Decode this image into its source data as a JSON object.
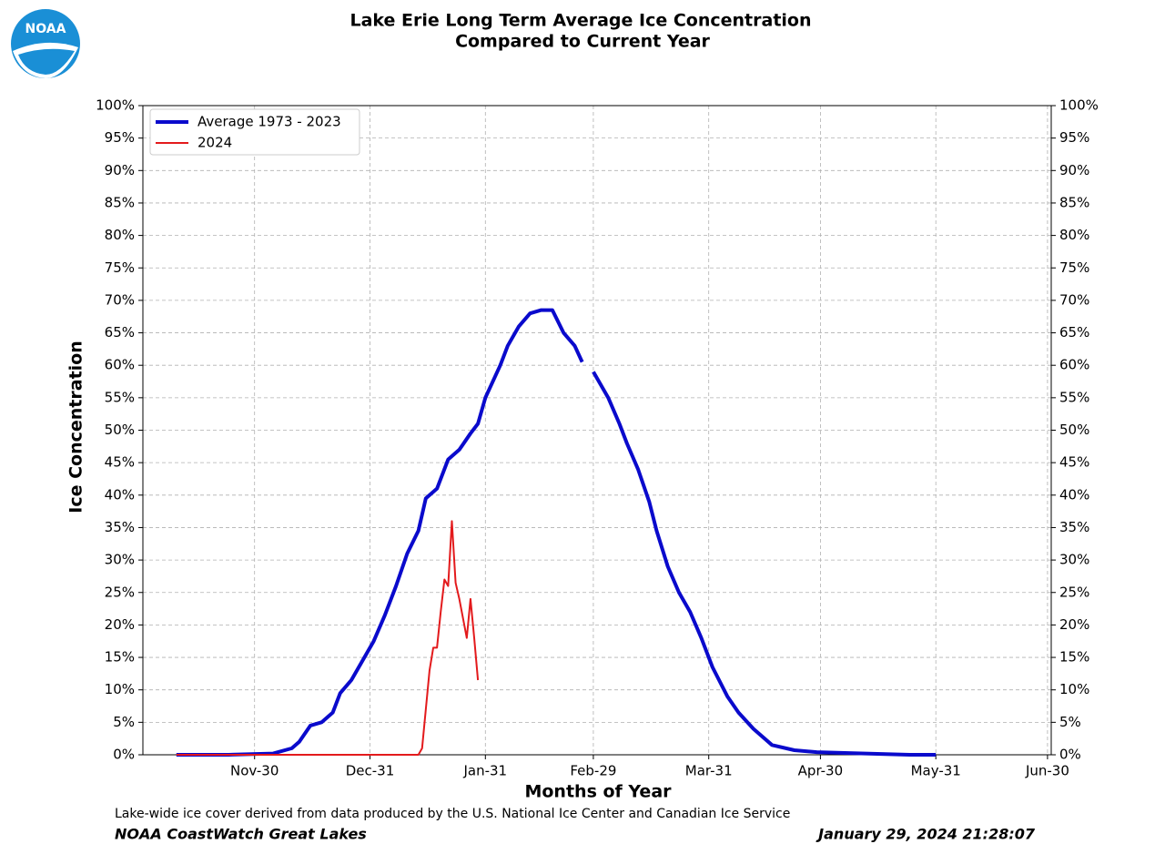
{
  "logo_text": "NOAA",
  "chart_data": {
    "type": "line",
    "title": "Lake Erie Long Term Average Ice Concentration",
    "subtitle": "Compared to Current Year",
    "xlabel": "Months of Year",
    "ylabel": "Ice Concentration",
    "footnote": "Lake-wide ice cover derived from data produced by the U.S. National Ice Center and Canadian Ice Service",
    "credit": "NOAA CoastWatch Great Lakes",
    "timestamp": "January 29, 2024 21:28:07",
    "legend": "upper left",
    "grid": true,
    "xlim": [
      0,
      244
    ],
    "ylim": [
      0,
      100
    ],
    "xticks": [
      {
        "value": 30,
        "label": "Nov-30"
      },
      {
        "value": 61,
        "label": "Dec-31"
      },
      {
        "value": 92,
        "label": "Jan-31"
      },
      {
        "value": 121,
        "label": "Feb-29"
      },
      {
        "value": 152,
        "label": "Mar-31"
      },
      {
        "value": 182,
        "label": "Apr-30"
      },
      {
        "value": 213,
        "label": "May-31"
      },
      {
        "value": 243,
        "label": "Jun-30"
      }
    ],
    "yticks": [
      {
        "value": 0,
        "label": "0%"
      },
      {
        "value": 5,
        "label": "5%"
      },
      {
        "value": 10,
        "label": "10%"
      },
      {
        "value": 15,
        "label": "15%"
      },
      {
        "value": 20,
        "label": "20%"
      },
      {
        "value": 25,
        "label": "25%"
      },
      {
        "value": 30,
        "label": "30%"
      },
      {
        "value": 35,
        "label": "35%"
      },
      {
        "value": 40,
        "label": "40%"
      },
      {
        "value": 45,
        "label": "45%"
      },
      {
        "value": 50,
        "label": "50%"
      },
      {
        "value": 55,
        "label": "55%"
      },
      {
        "value": 60,
        "label": "60%"
      },
      {
        "value": 65,
        "label": "65%"
      },
      {
        "value": 70,
        "label": "70%"
      },
      {
        "value": 75,
        "label": "75%"
      },
      {
        "value": 80,
        "label": "80%"
      },
      {
        "value": 85,
        "label": "85%"
      },
      {
        "value": 90,
        "label": "90%"
      },
      {
        "value": 95,
        "label": "95%"
      },
      {
        "value": 100,
        "label": "100%"
      }
    ],
    "series": [
      {
        "name": "Average 1973 - 2023",
        "color": "#0a0acc",
        "width": 4,
        "x": [
          9,
          23,
          35,
          40,
          42,
          45,
          48,
          51,
          53,
          56,
          59,
          62,
          65,
          68,
          71,
          74,
          76,
          79,
          82,
          85,
          88,
          90,
          92,
          96,
          98,
          101,
          104,
          107,
          110,
          113,
          116,
          118,
          120,
          121,
          125,
          128,
          130,
          133,
          136,
          138,
          141,
          144,
          147,
          150,
          153,
          157,
          160,
          164,
          169,
          175,
          181,
          194,
          206,
          213
        ],
        "values": [
          0,
          0,
          0.2,
          1,
          2,
          4.5,
          5,
          6.5,
          9.5,
          11.5,
          14.5,
          17.5,
          21.5,
          26,
          31,
          34.5,
          39.5,
          41,
          45.5,
          47,
          49.5,
          51,
          55,
          60,
          63,
          66,
          68,
          68.5,
          68.5,
          65,
          63,
          60.5,
          null,
          59,
          55,
          51,
          48,
          44,
          39,
          34.5,
          29,
          25,
          22,
          18,
          13.5,
          9,
          6.5,
          4,
          1.5,
          0.7,
          0.4,
          0.2,
          0,
          0
        ]
      },
      {
        "name": "2024",
        "color": "#e31a1c",
        "width": 2,
        "x": [
          9,
          74,
          75,
          76,
          77,
          78,
          79,
          80,
          81,
          82,
          83,
          84,
          85,
          86,
          87,
          88,
          89,
          90
        ],
        "values": [
          0,
          0,
          1,
          7,
          13,
          16.5,
          16.5,
          22,
          27,
          26,
          36,
          26.5,
          24,
          21,
          18,
          24,
          18,
          11.5
        ]
      }
    ]
  }
}
